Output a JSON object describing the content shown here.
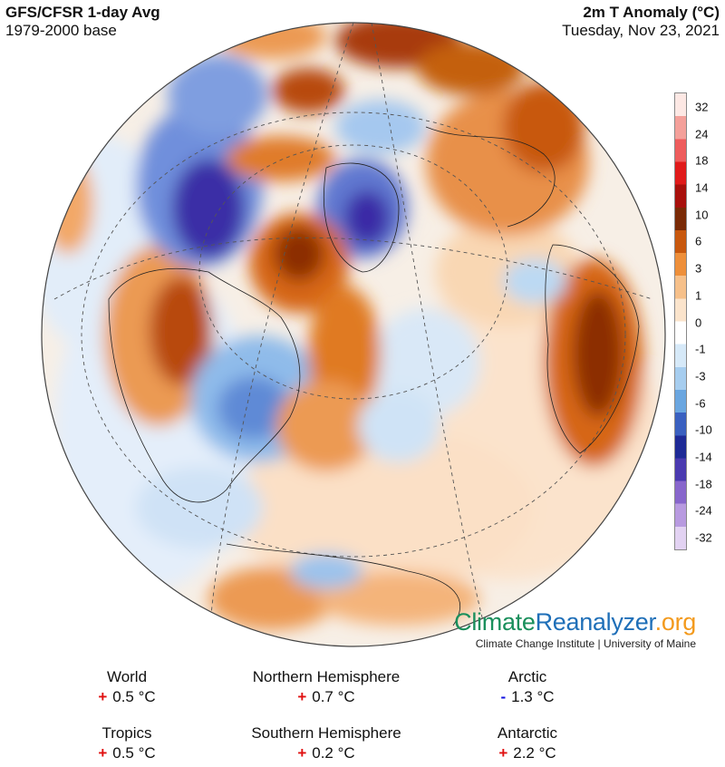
{
  "header": {
    "title_left": "GFS/CFSR 1-day Avg",
    "subtitle_left": "1979-2000 base",
    "title_right": "2m T Anomaly (°C)",
    "subtitle_right": "Tuesday, Nov 23, 2021"
  },
  "colorbar": {
    "ticks": [
      "32",
      "24",
      "18",
      "14",
      "10",
      "6",
      "3",
      "1",
      "0",
      "-1",
      "-3",
      "-6",
      "-10",
      "-14",
      "-18",
      "-24",
      "-32"
    ],
    "colors": [
      "#fde8e4",
      "#f4a09a",
      "#ee5c5c",
      "#e01a1a",
      "#a8100c",
      "#7a2a06",
      "#c8580e",
      "#ee8f3a",
      "#f6c08a",
      "#fbe4cc",
      "#ffffff",
      "#d6e9f8",
      "#a6cdef",
      "#6aa6e0",
      "#3a60c0",
      "#1e2a96",
      "#4a3ab0",
      "#8866cc",
      "#b89ae0",
      "#e2d2f2"
    ]
  },
  "map": {
    "description_icon": "globe-map",
    "palette": {
      "ocean_neutral": "#f8f3ec",
      "warm_light": "#f9d3ad",
      "warm_mid": "#ef9a52",
      "warm_strong": "#d66616",
      "warm_dark": "#8c2e06",
      "cold_light": "#d3e6f6",
      "cold_mid": "#8fbdea",
      "cold_strong": "#4d71cc",
      "cold_dark": "#3a2ca6"
    }
  },
  "branding": {
    "name_part1": "Climate",
    "name_part2": "Reanalyzer",
    "name_part3": ".org",
    "institute": "Climate Change Institute | University of Maine"
  },
  "stats": [
    {
      "label": "World",
      "sign": "+",
      "value": "0.5 °C"
    },
    {
      "label": "Northern Hemisphere",
      "sign": "+",
      "value": "0.7 °C"
    },
    {
      "label": "Arctic",
      "sign": "-",
      "value": "1.3 °C"
    },
    {
      "label": "Tropics",
      "sign": "+",
      "value": "0.5 °C"
    },
    {
      "label": "Southern Hemisphere",
      "sign": "+",
      "value": "0.2 °C"
    },
    {
      "label": "Antarctic",
      "sign": "+",
      "value": "2.2 °C"
    }
  ]
}
